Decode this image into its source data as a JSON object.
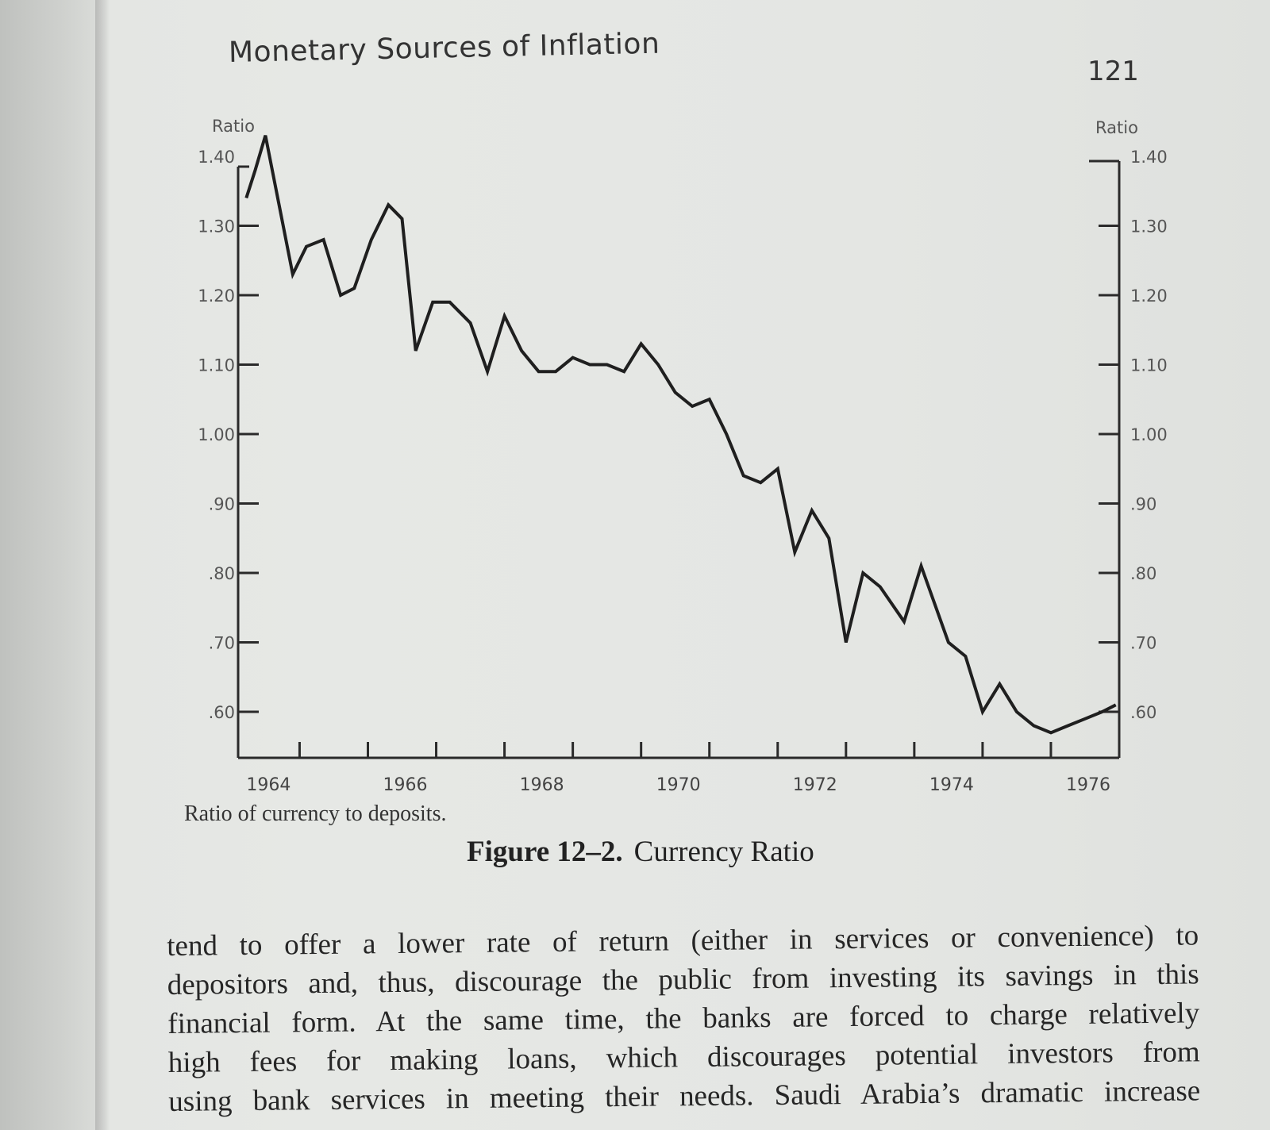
{
  "page": {
    "running_head": "Monetary Sources of Inflation",
    "page_number": "121"
  },
  "chart_data": {
    "type": "line",
    "title": "",
    "ylabel_left": "Ratio",
    "ylabel_right": "Ratio",
    "xlabel": "",
    "ylim": [
      0.55,
      1.4
    ],
    "xlim": [
      1963.6,
      1976.5
    ],
    "y_ticks": [
      1.4,
      1.3,
      1.2,
      1.1,
      1.0,
      0.9,
      0.8,
      0.7,
      0.6
    ],
    "y_tick_labels": [
      "1.40",
      "1.30",
      "1.20",
      "1.10",
      "1.00",
      ".90",
      ".80",
      ".70",
      ".60"
    ],
    "x_ticks": [
      1964,
      1965,
      1966,
      1967,
      1968,
      1969,
      1970,
      1971,
      1972,
      1973,
      1974,
      1975,
      1976
    ],
    "x_tick_labels": [
      "1964",
      "",
      "1966",
      "",
      "1968",
      "",
      "1970",
      "",
      "1972",
      "",
      "1974",
      "",
      "1976"
    ],
    "grid": false,
    "series": [
      {
        "x": [
          1963.72,
          1963.85,
          1964.0,
          1964.4,
          1964.6,
          1964.85,
          1965.1,
          1965.3,
          1965.55,
          1965.8,
          1966.0,
          1966.2,
          1966.45,
          1966.7,
          1967.0,
          1967.25,
          1967.5,
          1967.75,
          1968.0,
          1968.25,
          1968.5,
          1968.75,
          1969.0,
          1969.25,
          1969.5,
          1969.75,
          1970.0,
          1970.25,
          1970.5,
          1970.75,
          1971.0,
          1971.25,
          1971.5,
          1971.75,
          1972.0,
          1972.25,
          1972.5,
          1972.75,
          1973.0,
          1973.35,
          1973.6,
          1974.0,
          1974.25,
          1974.5,
          1974.75,
          1975.0,
          1975.25,
          1975.5,
          1975.75,
          1976.0,
          1976.25,
          1976.45
        ],
        "y": [
          1.34,
          1.38,
          1.43,
          1.23,
          1.27,
          1.28,
          1.2,
          1.21,
          1.28,
          1.33,
          1.31,
          1.12,
          1.19,
          1.19,
          1.16,
          1.09,
          1.17,
          1.12,
          1.09,
          1.09,
          1.11,
          1.1,
          1.1,
          1.09,
          1.13,
          1.1,
          1.06,
          1.04,
          1.05,
          1.0,
          0.94,
          0.93,
          0.95,
          0.83,
          0.89,
          0.85,
          0.7,
          0.8,
          0.78,
          0.73,
          0.81,
          0.7,
          0.68,
          0.6,
          0.64,
          0.6,
          0.58,
          0.57,
          0.58,
          0.59,
          0.6,
          0.61
        ]
      }
    ]
  },
  "chart_note": "Ratio of currency to deposits.",
  "figure_caption": {
    "number": "Figure 12–2.",
    "title": "Currency Ratio"
  },
  "body_text": [
    "tend to offer a lower rate of return (either in services or convenience) to",
    "depositors and, thus, discourage the public from investing its savings in this",
    "financial form. At the same time, the banks are forced to charge relatively",
    "high fees for making loans, which discourages potential investors from",
    "using bank services in meeting their needs. Saudi Arabia’s dramatic increase"
  ]
}
